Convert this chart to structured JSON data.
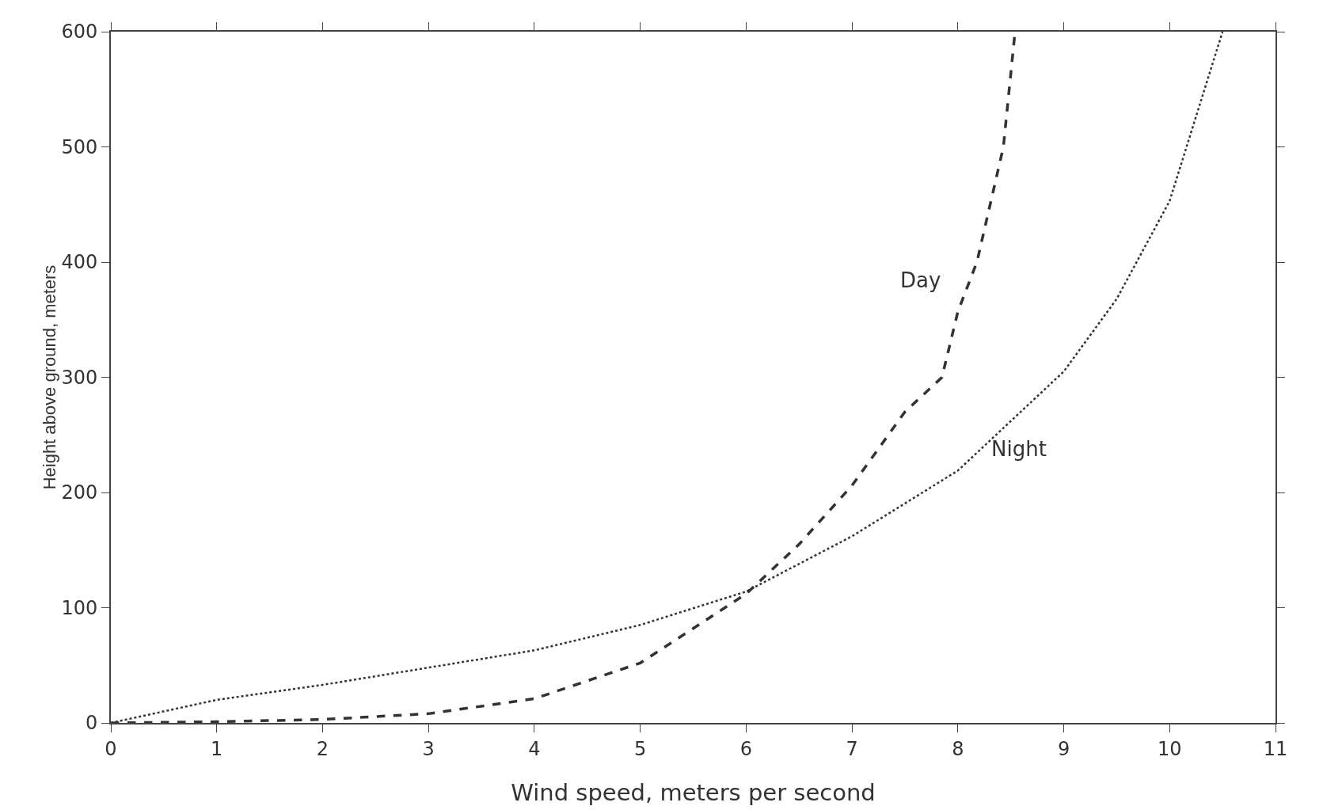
{
  "chart_data": {
    "type": "line",
    "xlabel": "Wind speed, meters per second",
    "ylabel": "Height above ground, meters",
    "xlim": [
      0,
      11
    ],
    "xticks": [
      0,
      1,
      2,
      3,
      4,
      5,
      6,
      7,
      8,
      9,
      10,
      11
    ],
    "ylim": [
      0,
      600
    ],
    "yticks": [
      0,
      100,
      200,
      300,
      400,
      500,
      600
    ],
    "grid": false,
    "marker": "none",
    "series": [
      {
        "name": "Day",
        "color": "#333333",
        "line_style": "dashed",
        "x": [
          0,
          1,
          2,
          3,
          4,
          5,
          6,
          6.5,
          7,
          7.5,
          7.85,
          8,
          8.18,
          8.43,
          8.54
        ],
        "values": [
          0,
          1,
          3,
          8,
          21,
          52,
          112,
          155,
          206,
          270,
          300,
          357,
          400,
          500,
          600
        ]
      },
      {
        "name": "Night",
        "color": "#333333",
        "line_style": "dotted",
        "x": [
          0,
          1,
          2,
          3,
          4,
          5,
          6,
          7,
          8,
          9,
          9.5,
          10,
          10.5
        ],
        "values": [
          0,
          20,
          33,
          48,
          63,
          85,
          114,
          162,
          219,
          305,
          368,
          453,
          600
        ]
      }
    ]
  }
}
